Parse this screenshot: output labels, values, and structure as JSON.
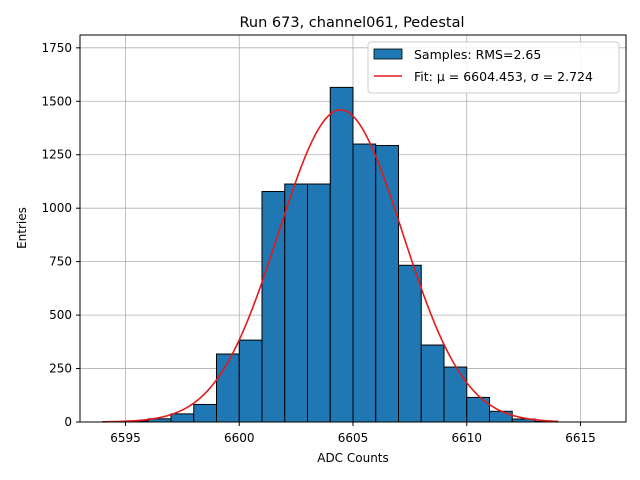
{
  "chart_data": {
    "type": "bar",
    "title": "Run 673, channel061, Pedestal",
    "xlabel": "ADC Counts",
    "ylabel": "Entries",
    "xlim": [
      6593,
      6617
    ],
    "ylim": [
      0,
      1810
    ],
    "xticks": [
      6595,
      6600,
      6605,
      6610,
      6615
    ],
    "yticks": [
      0,
      250,
      500,
      750,
      1000,
      1250,
      1500,
      1750
    ],
    "grid": true,
    "legend_position": "top-right",
    "bins": [
      {
        "x0": 6594.0,
        "x1": 6595.0,
        "count": 2
      },
      {
        "x0": 6595.0,
        "x1": 6596.0,
        "count": 5
      },
      {
        "x0": 6596.0,
        "x1": 6597.0,
        "count": 15
      },
      {
        "x0": 6597.0,
        "x1": 6598.0,
        "count": 38
      },
      {
        "x0": 6598.0,
        "x1": 6599.0,
        "count": 82
      },
      {
        "x0": 6599.0,
        "x1": 6600.0,
        "count": 318
      },
      {
        "x0": 6600.0,
        "x1": 6601.0,
        "count": 383
      },
      {
        "x0": 6601.0,
        "x1": 6602.0,
        "count": 1078
      },
      {
        "x0": 6602.0,
        "x1": 6603.0,
        "count": 1113
      },
      {
        "x0": 6603.0,
        "x1": 6604.0,
        "count": 1113
      },
      {
        "x0": 6604.0,
        "x1": 6605.0,
        "count": 1565
      },
      {
        "x0": 6605.0,
        "x1": 6606.0,
        "count": 1300
      },
      {
        "x0": 6606.0,
        "x1": 6607.0,
        "count": 1293
      },
      {
        "x0": 6607.0,
        "x1": 6608.0,
        "count": 733
      },
      {
        "x0": 6608.0,
        "x1": 6609.0,
        "count": 360
      },
      {
        "x0": 6609.0,
        "x1": 6610.0,
        "count": 257
      },
      {
        "x0": 6610.0,
        "x1": 6611.0,
        "count": 115
      },
      {
        "x0": 6611.0,
        "x1": 6612.0,
        "count": 50
      },
      {
        "x0": 6612.0,
        "x1": 6613.0,
        "count": 14
      },
      {
        "x0": 6613.0,
        "x1": 6614.0,
        "count": 3
      }
    ],
    "fit": {
      "amplitude": 1460,
      "mu": 6604.453,
      "sigma": 2.724,
      "x_range": [
        6594.0,
        6614.0
      ]
    },
    "series": [
      {
        "name": "Samples: RMS=2.65",
        "kind": "histogram",
        "color": "#1f77b4"
      },
      {
        "name": "Fit: μ = 6604.453, σ = 2.724",
        "kind": "line",
        "color": "#e31a1c"
      }
    ]
  }
}
